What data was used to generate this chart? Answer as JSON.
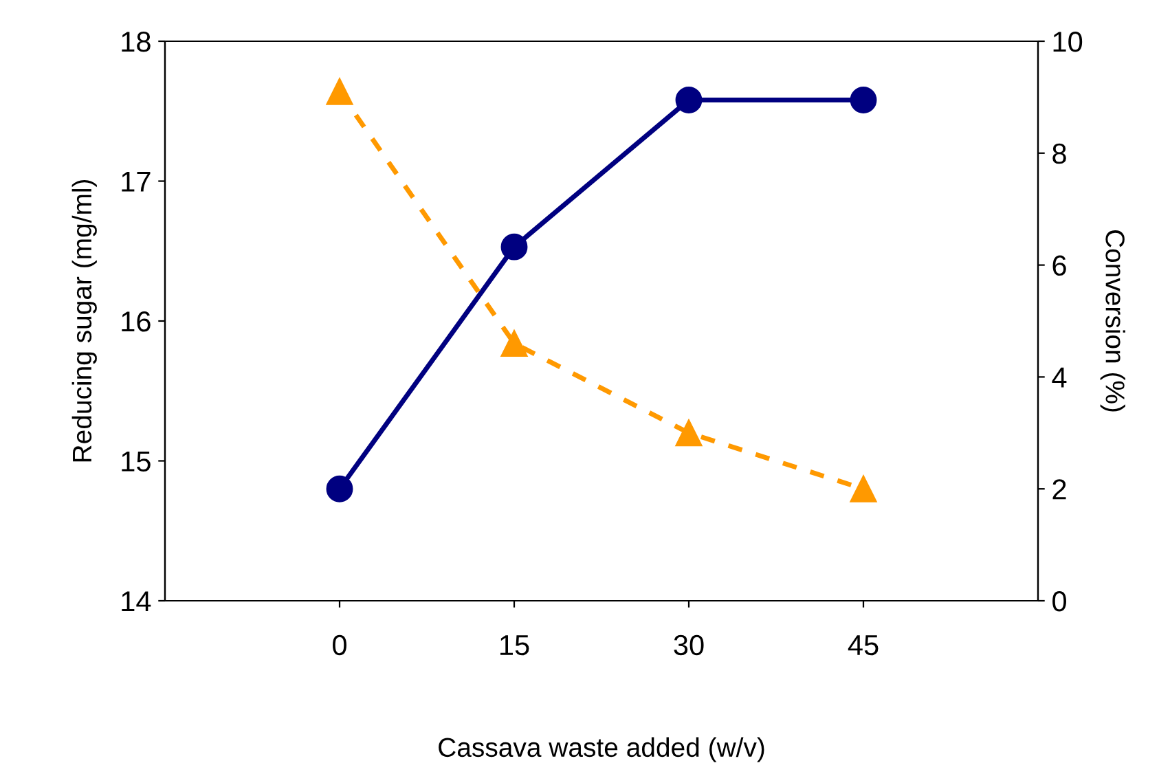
{
  "chart_data": {
    "type": "line",
    "xlabel": "Cassava waste added (w/v)",
    "ylabel": "Reducing sugar (mg/ml)",
    "y2label": "Conversion (%)",
    "x": [
      0,
      15,
      30,
      45
    ],
    "series": [
      {
        "color": "#000080",
        "values": [
          14.8,
          16.53,
          17.58,
          17.58
        ],
        "marker": "circle",
        "line_style": "solid"
      },
      {
        "color": "#ff9900",
        "values": [
          9.1,
          4.6,
          3.0,
          2.0
        ],
        "marker": "triangle",
        "line_style": "dashed",
        "axis": "y2"
      }
    ],
    "xlim": [
      -15,
      60
    ],
    "xticks": [
      0,
      15,
      30,
      45
    ],
    "ylim": [
      14,
      18
    ],
    "yticks": [
      14,
      15,
      16,
      17,
      18
    ],
    "y2lim": [
      0,
      10
    ],
    "y2ticks": [
      0,
      2,
      4,
      6,
      8,
      10
    ],
    "grid": false,
    "legend": false
  }
}
